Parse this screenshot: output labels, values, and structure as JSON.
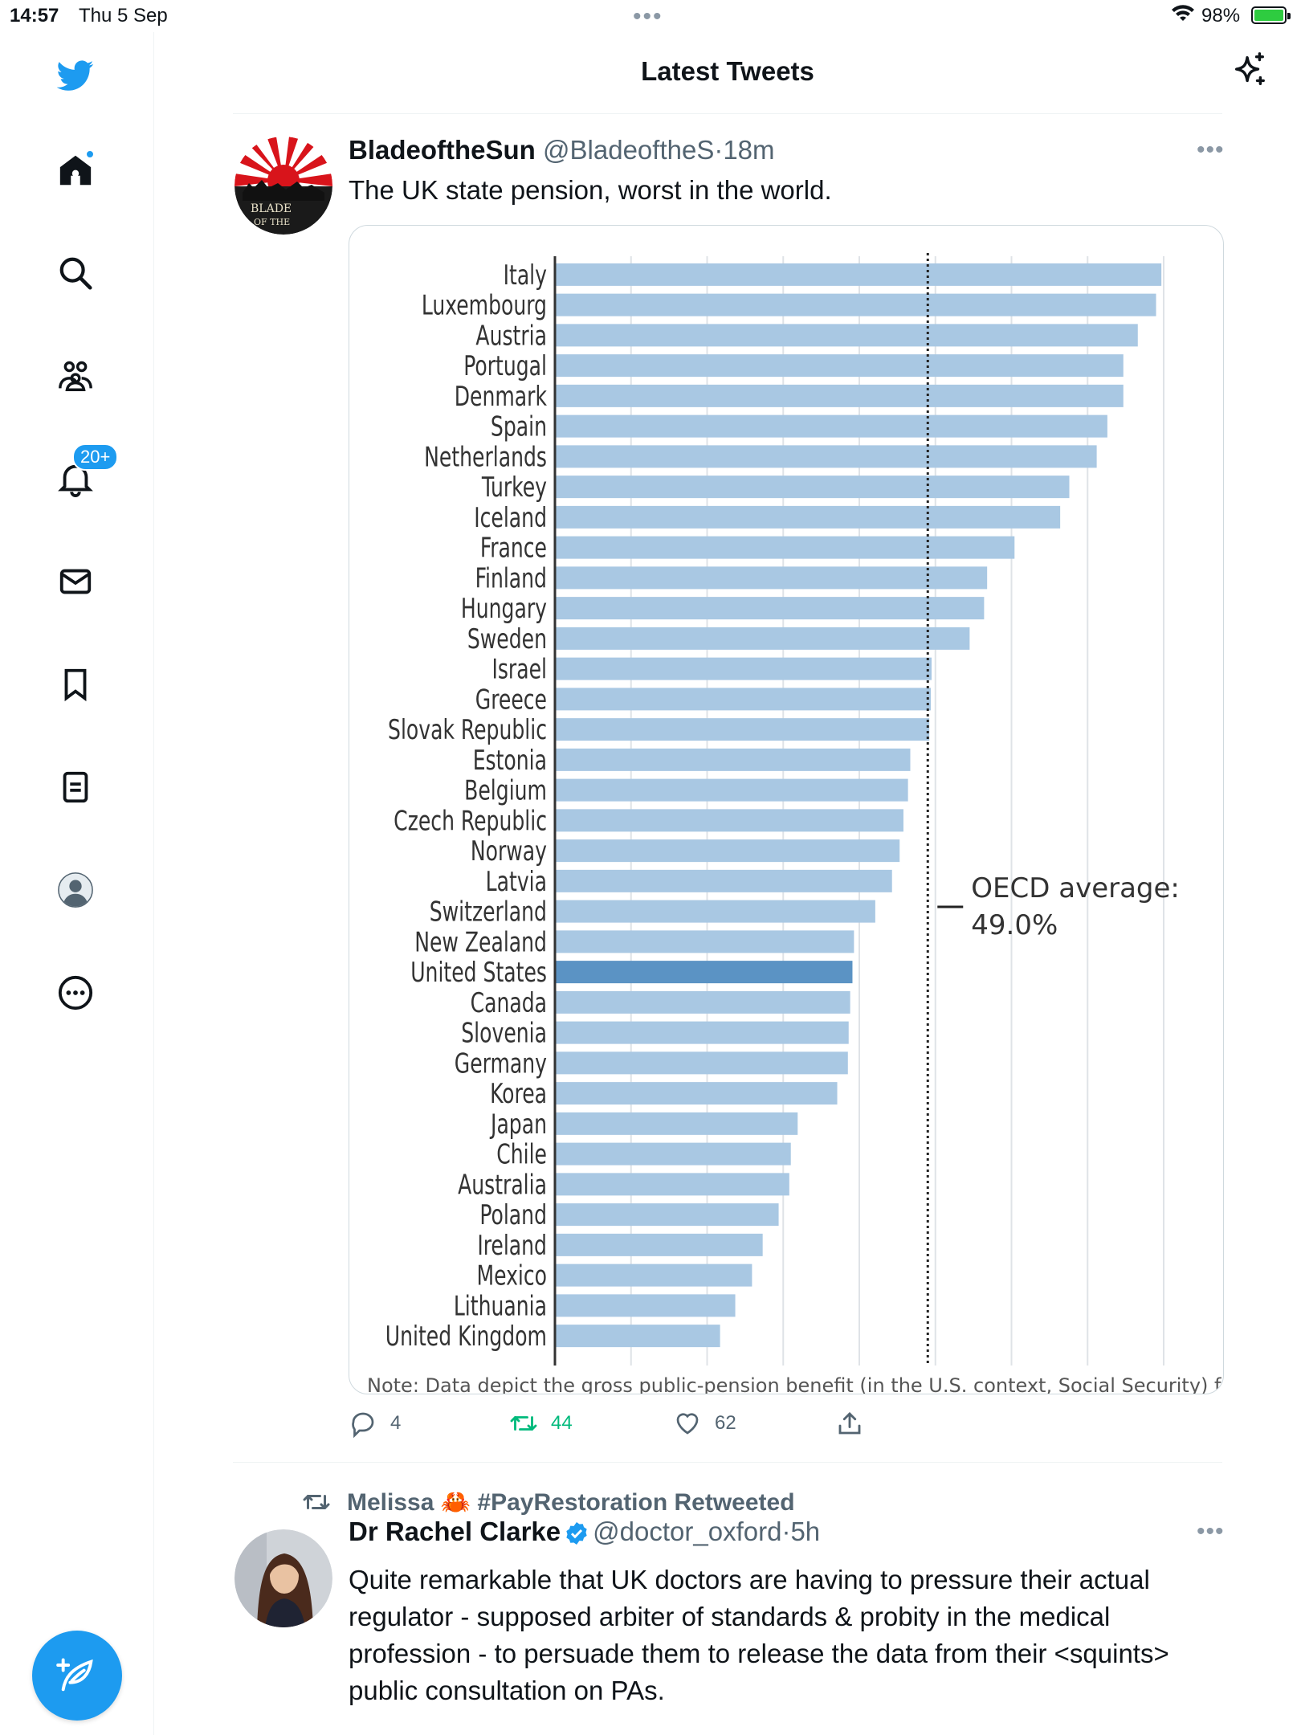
{
  "status_bar": {
    "time": "14:57",
    "date": "Thu 5 Sep",
    "battery": "98%"
  },
  "sidebar": {
    "notifications_badge": "20+"
  },
  "header": {
    "title": "Latest Tweets"
  },
  "tweet1": {
    "name": "BladeoftheSun",
    "handle": "@BladeoftheS",
    "sep": "·",
    "time": "18m",
    "text": "The UK state pension, worst in the world.",
    "avatar_text": "BLADE OF THE",
    "replies": "4",
    "retweets": "44",
    "likes": "62"
  },
  "chart_data": {
    "type": "bar",
    "orientation": "horizontal",
    "categories": [
      "Italy",
      "Luxembourg",
      "Austria",
      "Portugal",
      "Denmark",
      "Spain",
      "Netherlands",
      "Turkey",
      "Iceland",
      "France",
      "Finland",
      "Hungary",
      "Sweden",
      "Israel",
      "Greece",
      "Slovak Republic",
      "Estonia",
      "Belgium",
      "Czech Republic",
      "Norway",
      "Latvia",
      "Switzerland",
      "New Zealand",
      "United States",
      "Canada",
      "Slovenia",
      "Germany",
      "Korea",
      "Japan",
      "Chile",
      "Australia",
      "Poland",
      "Ireland",
      "Mexico",
      "Lithuania",
      "United Kingdom"
    ],
    "values": [
      79.7,
      79.0,
      76.6,
      74.7,
      74.7,
      72.6,
      71.2,
      67.6,
      66.4,
      60.4,
      56.8,
      56.4,
      54.5,
      49.5,
      49.4,
      49.2,
      46.7,
      46.4,
      45.8,
      45.3,
      44.3,
      42.1,
      39.3,
      39.1,
      38.8,
      38.6,
      38.5,
      37.1,
      31.9,
      31.0,
      30.8,
      29.4,
      27.3,
      25.9,
      23.7,
      21.7
    ],
    "highlight": "United States",
    "reference_line": {
      "value": 49.0,
      "label": "OECD average:",
      "value_label": "49.0%"
    },
    "note": "Note: Data depict the gross public-pension benefit (in the U.S. context, Social Security) for an",
    "colors": {
      "bar": "#a9c8e3",
      "highlight": "#5b93c4",
      "gridline": "#dfe3e7"
    }
  },
  "tweet2": {
    "retweeted_by": "Melissa 🦀 #PayRestoration Retweeted",
    "name": "Dr Rachel Clarke",
    "handle": "@doctor_oxford",
    "sep": "·",
    "time": "5h",
    "text_lines": [
      "Quite remarkable that UK doctors are having to pressure their actual",
      "regulator - supposed arbiter of standards & probity in the medical",
      "profession - to persuade them to release the data from their <squints>",
      "public consultation on PAs."
    ]
  },
  "icons": [
    "twitter-logo-icon",
    "home-icon",
    "search-icon",
    "communities-icon",
    "notifications-icon",
    "messages-icon",
    "bookmarks-icon",
    "lists-icon",
    "profile-icon",
    "more-icon",
    "sparkle-icon",
    "reply-icon",
    "retweet-icon",
    "like-icon",
    "share-icon",
    "compose-icon",
    "verified-icon"
  ],
  "colors": {
    "accent": "#1d9bf0",
    "text": "#0f1419",
    "secondary": "#536471",
    "retweet": "#00ba7c"
  }
}
